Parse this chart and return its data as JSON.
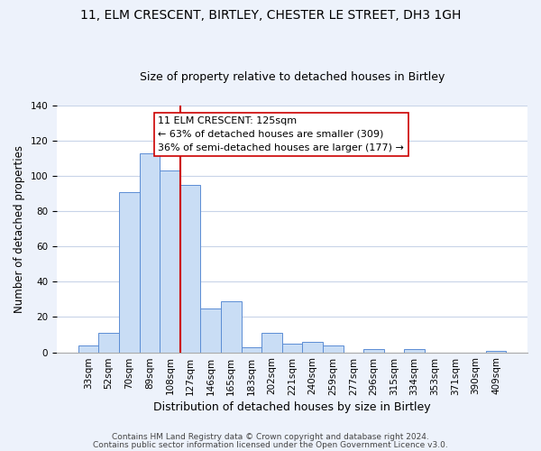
{
  "title": "11, ELM CRESCENT, BIRTLEY, CHESTER LE STREET, DH3 1GH",
  "subtitle": "Size of property relative to detached houses in Birtley",
  "xlabel": "Distribution of detached houses by size in Birtley",
  "ylabel": "Number of detached properties",
  "bar_labels": [
    "33sqm",
    "52sqm",
    "70sqm",
    "89sqm",
    "108sqm",
    "127sqm",
    "146sqm",
    "165sqm",
    "183sqm",
    "202sqm",
    "221sqm",
    "240sqm",
    "259sqm",
    "277sqm",
    "296sqm",
    "315sqm",
    "334sqm",
    "353sqm",
    "371sqm",
    "390sqm",
    "409sqm"
  ],
  "bar_values": [
    4,
    11,
    91,
    113,
    103,
    95,
    25,
    29,
    3,
    11,
    5,
    6,
    4,
    0,
    2,
    0,
    2,
    0,
    0,
    0,
    1
  ],
  "bar_color": "#c9ddf5",
  "bar_edge_color": "#5b8dd4",
  "vline_color": "#cc0000",
  "ylim": [
    0,
    140
  ],
  "yticks": [
    0,
    20,
    40,
    60,
    80,
    100,
    120,
    140
  ],
  "annotation_title": "11 ELM CRESCENT: 125sqm",
  "annotation_line1": "← 63% of detached houses are smaller (309)",
  "annotation_line2": "36% of semi-detached houses are larger (177) →",
  "footer1": "Contains HM Land Registry data © Crown copyright and database right 2024.",
  "footer2": "Contains public sector information licensed under the Open Government Licence v3.0.",
  "title_fontsize": 10,
  "subtitle_fontsize": 9,
  "xlabel_fontsize": 9,
  "ylabel_fontsize": 8.5,
  "tick_fontsize": 7.5,
  "footer_fontsize": 6.5,
  "annotation_fontsize": 8,
  "bg_color": "#edf2fb",
  "plot_bg_color": "#ffffff",
  "grid_color": "#c8d4e8"
}
